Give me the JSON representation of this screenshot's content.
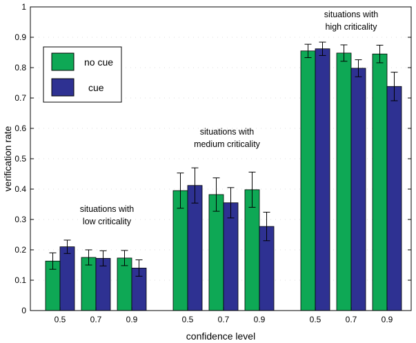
{
  "chart_data": {
    "type": "bar",
    "xlabel": "confidence level",
    "ylabel": "verification rate",
    "ylim": [
      0,
      1
    ],
    "yticks": [
      "0",
      "0.1",
      "0.2",
      "0.3",
      "0.4",
      "0.5",
      "0.6",
      "0.7",
      "0.8",
      "0.9",
      "1"
    ],
    "grid": "dotted ticks",
    "legend_position": "top-left",
    "groups": [
      {
        "annotation": [
          "situations with",
          "low criticality"
        ],
        "categories": [
          "0.5",
          "0.7",
          "0.9"
        ],
        "no_cue": [
          0.163,
          0.175,
          0.173
        ],
        "no_cue_err": [
          0.027,
          0.025,
          0.025
        ],
        "cue": [
          0.21,
          0.172,
          0.14
        ],
        "cue_err": [
          0.022,
          0.025,
          0.027
        ]
      },
      {
        "annotation": [
          "situations with",
          "medium criticality"
        ],
        "categories": [
          "0.5",
          "0.7",
          "0.9"
        ],
        "no_cue": [
          0.395,
          0.382,
          0.398
        ],
        "no_cue_err": [
          0.058,
          0.055,
          0.058
        ],
        "cue": [
          0.412,
          0.355,
          0.277
        ],
        "cue_err": [
          0.058,
          0.05,
          0.047
        ]
      },
      {
        "annotation": [
          "situations with",
          "high criticality"
        ],
        "categories": [
          "0.5",
          "0.7",
          "0.9"
        ],
        "no_cue": [
          0.855,
          0.848,
          0.845
        ],
        "no_cue_err": [
          0.022,
          0.027,
          0.029
        ],
        "cue": [
          0.862,
          0.798,
          0.738
        ],
        "cue_err": [
          0.022,
          0.028,
          0.047
        ]
      }
    ],
    "series": [
      {
        "name": "no cue",
        "color": "#0ea855"
      },
      {
        "name": "cue",
        "color": "#2e3192"
      }
    ]
  }
}
